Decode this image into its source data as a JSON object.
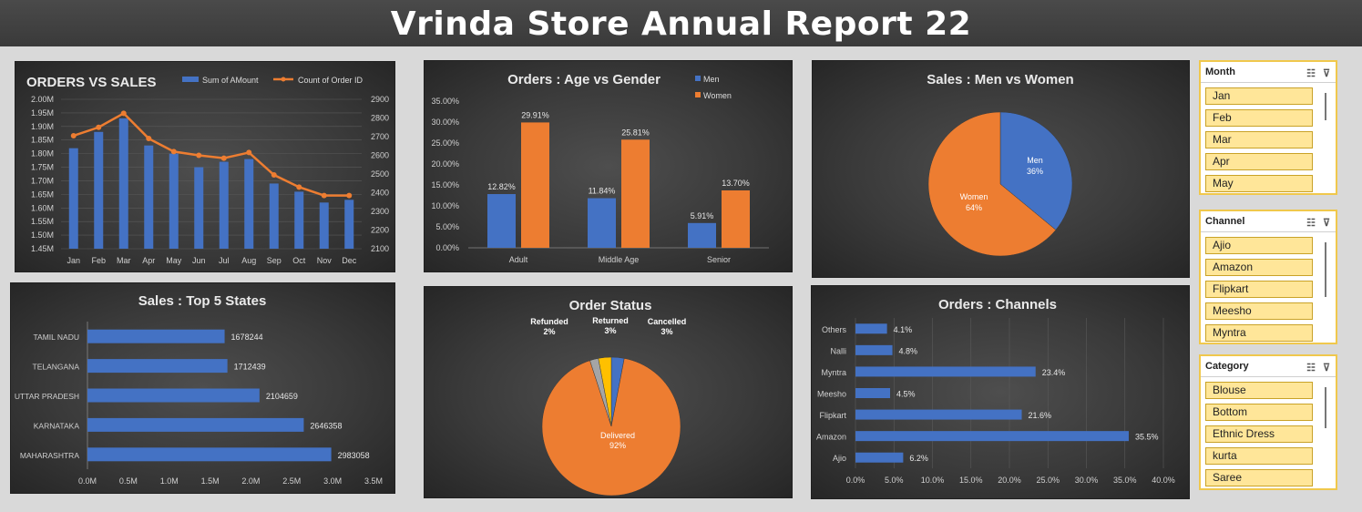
{
  "title": "Vrinda Store Annual Report 22",
  "colors": {
    "blue": "#4472c4",
    "orange": "#ed7d31",
    "gray": "#a5a5a5",
    "gold": "#ffc000",
    "tick": "#d0d0d0"
  },
  "chart_data": [
    {
      "id": "orders_vs_sales",
      "type": "bar",
      "title": "ORDERS VS SALES",
      "categories": [
        "Jan",
        "Feb",
        "Mar",
        "Apr",
        "May",
        "Jun",
        "Jul",
        "Aug",
        "Sep",
        "Oct",
        "Nov",
        "Dec"
      ],
      "series": [
        {
          "name": "Sum of AMount",
          "type": "bar",
          "axis": "left",
          "values": [
            1.82,
            1.88,
            1.93,
            1.83,
            1.8,
            1.75,
            1.77,
            1.78,
            1.69,
            1.66,
            1.62,
            1.63
          ]
        },
        {
          "name": "Count of Order ID",
          "type": "line",
          "axis": "right",
          "values": [
            2705,
            2750,
            2825,
            2690,
            2620,
            2600,
            2585,
            2615,
            2495,
            2430,
            2385,
            2385
          ]
        }
      ],
      "ylim": [
        1.45,
        2.0
      ],
      "yticks": [
        "1.45M",
        "1.50M",
        "1.55M",
        "1.60M",
        "1.65M",
        "1.70M",
        "1.75M",
        "1.80M",
        "1.85M",
        "1.90M",
        "1.95M",
        "2.00M"
      ],
      "y2lim": [
        2100,
        2900
      ],
      "y2ticks": [
        "2100",
        "2200",
        "2300",
        "2400",
        "2500",
        "2600",
        "2700",
        "2800",
        "2900"
      ],
      "legend": "top"
    },
    {
      "id": "age_vs_gender",
      "type": "bar",
      "title": "Orders : Age vs Gender",
      "categories": [
        "Adult",
        "Middle Age",
        "Senior"
      ],
      "series": [
        {
          "name": "Men",
          "values": [
            12.82,
            11.84,
            5.91
          ],
          "labels": [
            "12.82%",
            "11.84%",
            "5.91%"
          ]
        },
        {
          "name": "Women",
          "values": [
            29.91,
            25.81,
            13.7
          ],
          "labels": [
            "29.91%",
            "25.81%",
            "13.70%"
          ]
        }
      ],
      "ylim": [
        0,
        35
      ],
      "yticks": [
        "0.00%",
        "5.00%",
        "10.00%",
        "15.00%",
        "20.00%",
        "25.00%",
        "30.00%",
        "35.00%"
      ],
      "legend": "top-right"
    },
    {
      "id": "men_vs_women",
      "type": "pie",
      "title": "Sales : Men vs Women",
      "slices": [
        {
          "name": "Men",
          "value": 36,
          "label": "36%"
        },
        {
          "name": "Women",
          "value": 64,
          "label": "64%"
        }
      ]
    },
    {
      "id": "top_states",
      "type": "bar",
      "orientation": "horizontal",
      "title": "Sales : Top 5 States",
      "categories": [
        "TAMIL NADU",
        "TELANGANA",
        "UTTAR PRADESH",
        "KARNATAKA",
        "MAHARASHTRA"
      ],
      "values": [
        1678244,
        1712439,
        2104659,
        2646358,
        2983058
      ],
      "xlim": [
        0,
        3.5
      ],
      "xticks": [
        "0.0M",
        "0.5M",
        "1.0M",
        "1.5M",
        "2.0M",
        "2.5M",
        "3.0M",
        "3.5M"
      ]
    },
    {
      "id": "order_status",
      "type": "pie",
      "title": "Order Status",
      "slices": [
        {
          "name": "Cancelled",
          "value": 3,
          "label": "3%"
        },
        {
          "name": "Delivered",
          "value": 92,
          "label": "92%"
        },
        {
          "name": "Refunded",
          "value": 2,
          "label": "2%"
        },
        {
          "name": "Returned",
          "value": 3,
          "label": "3%"
        }
      ]
    },
    {
      "id": "channels",
      "type": "bar",
      "orientation": "horizontal",
      "title": "Orders : Channels",
      "categories": [
        "Others",
        "Nalli",
        "Myntra",
        "Meesho",
        "Flipkart",
        "Amazon",
        "Ajio"
      ],
      "values": [
        4.1,
        4.8,
        23.4,
        4.5,
        21.6,
        35.5,
        6.2
      ],
      "labels": [
        "4.1%",
        "4.8%",
        "23.4%",
        "4.5%",
        "21.6%",
        "35.5%",
        "6.2%"
      ],
      "xlim": [
        0,
        40
      ],
      "xticks": [
        "0.0%",
        "5.0%",
        "10.0%",
        "15.0%",
        "20.0%",
        "25.0%",
        "30.0%",
        "35.0%",
        "40.0%"
      ]
    }
  ],
  "slicers": [
    {
      "title": "Month",
      "items": [
        "Jan",
        "Feb",
        "Mar",
        "Apr",
        "May"
      ]
    },
    {
      "title": "Channel",
      "items": [
        "Ajio",
        "Amazon",
        "Flipkart",
        "Meesho",
        "Myntra"
      ]
    },
    {
      "title": "Category",
      "items": [
        "Blouse",
        "Bottom",
        "Ethnic Dress",
        "kurta",
        "Saree"
      ]
    }
  ],
  "slicer_icons": [
    "multi-select-icon",
    "clear-filter-icon"
  ]
}
